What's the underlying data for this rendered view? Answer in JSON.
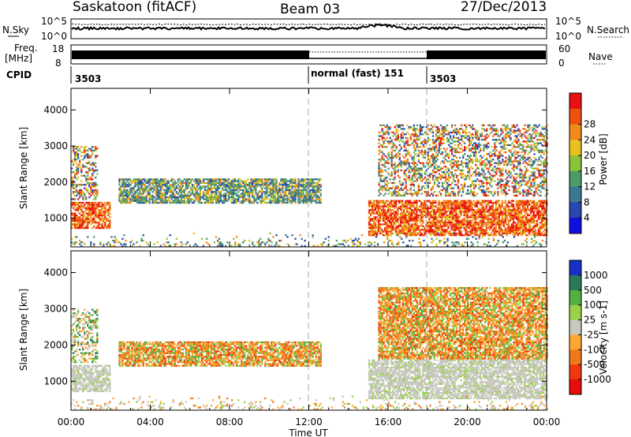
{
  "header": {
    "station": "Saskatoon (fitACF)",
    "beam": "Beam 03",
    "date": "27/Dec/2013"
  },
  "params": {
    "nsky_label": "N.Sky",
    "nsky_ticks": [
      "10^5",
      "10^0"
    ],
    "nsearch_label": "N.Search",
    "nsearch_ticks": [
      "10^5",
      "10^0"
    ],
    "freq_label": "Freq.",
    "freq_unit": "[MHz]",
    "freq_ticks": [
      "18",
      "8"
    ],
    "nave_label": "Nave",
    "nave_ticks": [
      "60",
      "0"
    ],
    "cpid_label": "CPID",
    "cpid_segments": [
      {
        "label": "3503",
        "start": 0,
        "end": 12
      },
      {
        "label": "normal (fast) 151",
        "start": 12,
        "end": 18
      },
      {
        "label": "3503",
        "start": 18,
        "end": 24
      }
    ]
  },
  "chart_data": [
    {
      "type": "heatmap",
      "name": "power",
      "xlabel": "",
      "ylabel": "Slant Range [km]",
      "xlim": [
        0,
        24
      ],
      "ylim": [
        200,
        4600
      ],
      "yticks": [
        "1000",
        "2000",
        "3000",
        "4000"
      ],
      "colorbar": {
        "label": "Power [dB]",
        "ticks": [
          "4",
          "8",
          "12",
          "16",
          "20",
          "24",
          "28"
        ],
        "colors": [
          "#1010e0",
          "#2848b0",
          "#3c7890",
          "#4c9a66",
          "#8cc23a",
          "#e8c020",
          "#f08a1a",
          "#ee5010",
          "#e81010"
        ]
      },
      "regions": [
        {
          "t": [
            0.0,
            2.0
          ],
          "r": [
            700,
            1450
          ],
          "level": "high"
        },
        {
          "t": [
            0.0,
            1.3
          ],
          "r": [
            1500,
            3000
          ],
          "level": "mixed"
        },
        {
          "t": [
            2.4,
            12.6
          ],
          "r": [
            1400,
            2100
          ],
          "level": "mid"
        },
        {
          "t": [
            15.0,
            24.0
          ],
          "r": [
            500,
            1500
          ],
          "level": "high"
        },
        {
          "t": [
            15.5,
            24.0
          ],
          "r": [
            1600,
            3600
          ],
          "level": "mixed"
        },
        {
          "t": [
            0.0,
            24.0
          ],
          "r": [
            200,
            600
          ],
          "level": "low"
        }
      ]
    },
    {
      "type": "heatmap",
      "name": "velocity",
      "xlabel": "Time UT",
      "ylabel": "Slant Range [km]",
      "xlim": [
        0,
        24
      ],
      "ylim": [
        200,
        4600
      ],
      "xticks": [
        "00:00",
        "04:00",
        "08:00",
        "12:00",
        "16:00",
        "20:00",
        "00:00"
      ],
      "yticks": [
        "1000",
        "2000",
        "3000",
        "4000"
      ],
      "colorbar": {
        "label": "Velocity [m s-1]",
        "ticks": [
          "1000",
          "500",
          "100",
          "25",
          "-25",
          "-100",
          "-500",
          "-1000"
        ],
        "colors": [
          "#1830c8",
          "#2a7a5a",
          "#52b040",
          "#9ad048",
          "#c8c8c0",
          "#ffa830",
          "#f07818",
          "#f03810",
          "#e80c0c"
        ]
      },
      "regions": [
        {
          "t": [
            0.0,
            2.0
          ],
          "r": [
            700,
            1450
          ],
          "level": "ground"
        },
        {
          "t": [
            0.0,
            1.3
          ],
          "r": [
            1500,
            3000
          ],
          "level": "mixed"
        },
        {
          "t": [
            2.4,
            12.6
          ],
          "r": [
            1400,
            2100
          ],
          "level": "away"
        },
        {
          "t": [
            15.0,
            24.0
          ],
          "r": [
            500,
            1600
          ],
          "level": "ground"
        },
        {
          "t": [
            15.5,
            24.0
          ],
          "r": [
            1600,
            3600
          ],
          "level": "away"
        },
        {
          "t": [
            0.0,
            24.0
          ],
          "r": [
            200,
            600
          ],
          "level": "low"
        }
      ]
    }
  ]
}
